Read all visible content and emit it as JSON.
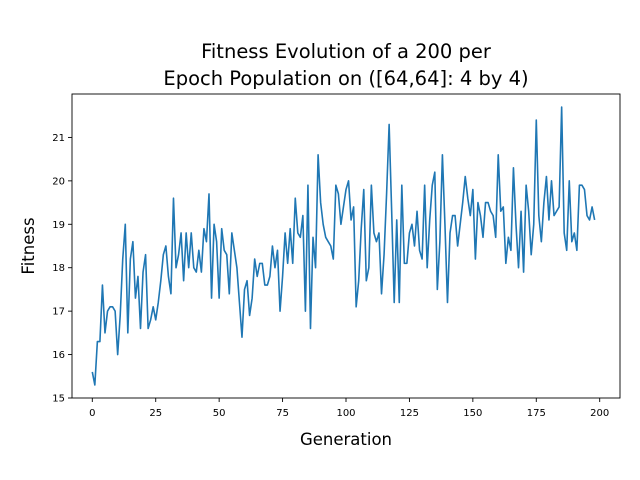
{
  "chart_data": {
    "type": "line",
    "title_lines": [
      "Fitness Evolution of a 200 per",
      "Epoch Population on ([64,64]: 4 by 4)"
    ],
    "xlabel": "Generation",
    "ylabel": "Fitness",
    "xlim": [
      -8,
      208
    ],
    "ylim": [
      15,
      22
    ],
    "xticks": [
      0,
      25,
      50,
      75,
      100,
      125,
      150,
      175,
      200
    ],
    "yticks": [
      15,
      16,
      17,
      18,
      19,
      20,
      21
    ],
    "grid": false,
    "line_color": "#1f77b4",
    "series": [
      {
        "values": [
          15.6,
          15.3,
          16.3,
          16.3,
          17.6,
          16.5,
          17.0,
          17.1,
          17.1,
          17.0,
          16.0,
          16.9,
          18.2,
          19.0,
          16.5,
          18.2,
          18.6,
          17.3,
          17.8,
          16.6,
          17.9,
          18.3,
          16.6,
          16.8,
          17.1,
          16.8,
          17.2,
          17.7,
          18.3,
          18.5,
          17.8,
          17.4,
          19.6,
          18.0,
          18.3,
          18.8,
          17.7,
          18.8,
          18.0,
          18.8,
          18.0,
          17.9,
          18.4,
          17.9,
          18.9,
          18.6,
          19.7,
          17.3,
          19.0,
          18.6,
          17.3,
          18.9,
          18.4,
          18.3,
          17.4,
          18.8,
          18.4,
          18.0,
          17.2,
          16.4,
          17.5,
          17.7,
          16.9,
          17.3,
          18.2,
          17.8,
          18.1,
          18.1,
          17.6,
          17.6,
          17.8,
          18.5,
          18.0,
          18.4,
          17.0,
          17.8,
          18.8,
          18.1,
          18.9,
          18.1,
          19.6,
          18.8,
          18.7,
          19.2,
          17.0,
          19.9,
          16.6,
          18.7,
          18.0,
          20.6,
          19.5,
          19.0,
          18.7,
          18.6,
          18.5,
          18.2,
          19.9,
          19.7,
          19.0,
          19.4,
          19.8,
          20.0,
          19.1,
          19.4,
          17.1,
          17.7,
          18.9,
          19.8,
          17.7,
          18.0,
          19.9,
          18.8,
          18.6,
          18.8,
          17.4,
          18.3,
          19.7,
          21.3,
          19.3,
          17.2,
          19.1,
          17.2,
          19.9,
          18.1,
          18.1,
          18.8,
          19.0,
          18.5,
          19.3,
          18.4,
          18.2,
          19.9,
          18.0,
          19.1,
          19.9,
          20.2,
          17.5,
          18.6,
          20.6,
          19.0,
          17.2,
          18.8,
          19.2,
          19.2,
          18.5,
          19.0,
          19.5,
          20.1,
          19.6,
          19.2,
          19.8,
          18.2,
          19.5,
          19.2,
          18.7,
          19.5,
          19.5,
          19.3,
          19.2,
          18.7,
          20.6,
          19.3,
          19.4,
          18.1,
          18.7,
          18.4,
          20.3,
          19.0,
          18.0,
          19.3,
          17.9,
          19.9,
          19.3,
          18.3,
          19.0,
          21.4,
          19.2,
          18.6,
          19.5,
          20.1,
          19.1,
          20.0,
          19.2,
          19.3,
          19.4,
          21.7,
          18.8,
          18.4,
          20.0,
          18.6,
          18.8,
          18.4,
          19.9,
          19.9,
          19.8,
          19.2,
          19.1,
          19.4,
          19.1
        ]
      }
    ]
  }
}
